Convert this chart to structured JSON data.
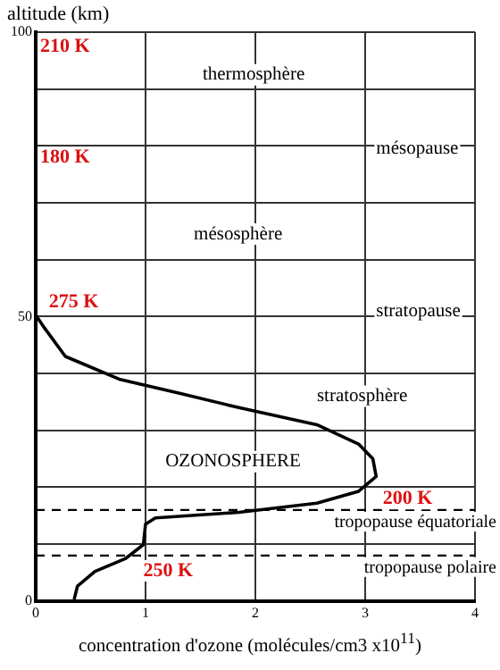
{
  "chart_data": {
    "type": "line",
    "xlabel": "concentration d'ozone (molécules/cm3 x10$^{11}$)",
    "ylabel": "altitude (km)",
    "series": [
      {
        "color": "#000000",
        "x": [
          0.35,
          0.38,
          0.54,
          0.82,
          0.98,
          1.0,
          1.09,
          1.85,
          2.56,
          2.94,
          3.1,
          3.07,
          2.94,
          2.56,
          1.85,
          1.31,
          0.76,
          0.27,
          0.08,
          0.01,
          0.0
        ],
        "values": [
          0.3,
          2.6,
          5.2,
          7.5,
          9.9,
          13.5,
          14.6,
          15.6,
          17.2,
          19.3,
          21.9,
          25,
          27.6,
          31,
          34,
          36.5,
          39,
          43,
          48,
          50,
          55
        ]
      }
    ],
    "xlim": [
      0,
      4
    ],
    "ylim": [
      0,
      100
    ],
    "xticks": [
      0,
      1,
      2,
      3,
      4
    ],
    "yticks": [
      0,
      {
        "value": 10,
        "label": null
      },
      {
        "value": 20,
        "label": null
      },
      {
        "value": 30,
        "label": null
      },
      {
        "value": 40,
        "label": null
      },
      50,
      {
        "value": 60,
        "label": null
      },
      {
        "value": 70,
        "label": null
      },
      {
        "value": 80,
        "label": null
      },
      {
        "value": 90,
        "label": null
      },
      100
    ],
    "grid": true,
    "marker": "none",
    "line_style": "solid",
    "legend": false,
    "ref_lines": [
      {
        "axis": "y",
        "value": 16,
        "label": "tropopause équatoriale",
        "line_style": "dashed",
        "color": "#000000"
      },
      {
        "axis": "y",
        "value": 8,
        "label": "tropopause polaire",
        "line_style": "dashed",
        "color": "#000000"
      }
    ],
    "annotations": [
      "210 K",
      "thermosphère",
      "180 K",
      "mésopause",
      "mésosphère",
      "275 K",
      "stratopause",
      "stratosphère",
      "OZONOSPHERE",
      "200 K",
      "250 K"
    ]
  }
}
